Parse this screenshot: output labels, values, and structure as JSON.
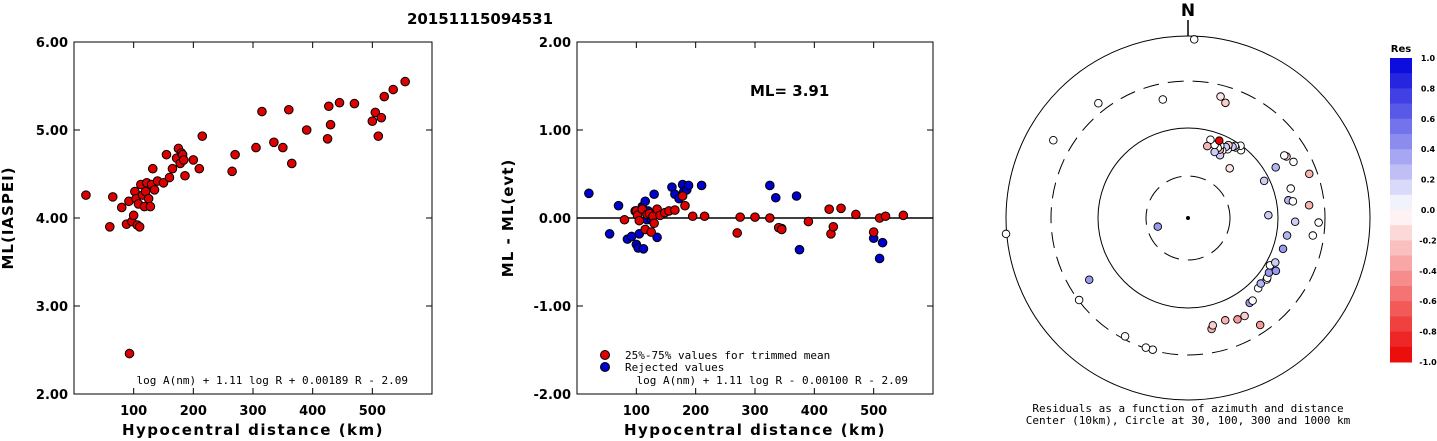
{
  "figure_title": "20151115094531",
  "colors": {
    "red": "#dd0000",
    "blue": "#0000cc",
    "axis": "#000000"
  },
  "chart_data": [
    {
      "type": "scatter",
      "id": "left",
      "xlabel": "Hypocentral distance (km)",
      "ylabel": "ML(IASPEI)",
      "xlim": [
        0,
        600
      ],
      "ylim": [
        2.0,
        6.0
      ],
      "xticks": [
        "100",
        "200",
        "300",
        "400",
        "500"
      ],
      "xtick_values": [
        100,
        200,
        300,
        400,
        500
      ],
      "yticks": [
        "2.00",
        "3.00",
        "4.00",
        "5.00",
        "6.00"
      ],
      "ytick_values": [
        2,
        3,
        4,
        5,
        6
      ],
      "formula": "log A(nm) + 1.11 log R + 0.00189 R - 2.09",
      "points": [
        [
          20,
          4.26
        ],
        [
          60,
          3.9
        ],
        [
          65,
          4.24
        ],
        [
          80,
          4.12
        ],
        [
          88,
          3.93
        ],
        [
          92,
          4.19
        ],
        [
          93,
          2.46
        ],
        [
          97,
          3.96
        ],
        [
          100,
          4.03
        ],
        [
          102,
          4.3
        ],
        [
          104,
          4.22
        ],
        [
          106,
          3.92
        ],
        [
          108,
          4.16
        ],
        [
          110,
          3.9
        ],
        [
          112,
          4.38
        ],
        [
          115,
          4.26
        ],
        [
          118,
          4.13
        ],
        [
          120,
          4.3
        ],
        [
          122,
          4.4
        ],
        [
          125,
          4.22
        ],
        [
          128,
          4.13
        ],
        [
          130,
          4.38
        ],
        [
          132,
          4.56
        ],
        [
          135,
          4.32
        ],
        [
          140,
          4.42
        ],
        [
          150,
          4.4
        ],
        [
          155,
          4.72
        ],
        [
          160,
          4.46
        ],
        [
          165,
          4.56
        ],
        [
          172,
          4.68
        ],
        [
          175,
          4.79
        ],
        [
          178,
          4.62
        ],
        [
          180,
          4.74
        ],
        [
          182,
          4.72
        ],
        [
          184,
          4.66
        ],
        [
          186,
          4.48
        ],
        [
          200,
          4.66
        ],
        [
          210,
          4.56
        ],
        [
          215,
          4.93
        ],
        [
          265,
          4.53
        ],
        [
          270,
          4.72
        ],
        [
          305,
          4.8
        ],
        [
          315,
          5.21
        ],
        [
          335,
          4.86
        ],
        [
          350,
          4.8
        ],
        [
          360,
          5.23
        ],
        [
          365,
          4.62
        ],
        [
          390,
          5.0
        ],
        [
          425,
          4.9
        ],
        [
          427,
          5.27
        ],
        [
          430,
          5.06
        ],
        [
          445,
          5.31
        ],
        [
          470,
          5.3
        ],
        [
          500,
          5.1
        ],
        [
          505,
          5.2
        ],
        [
          510,
          4.93
        ],
        [
          515,
          5.14
        ],
        [
          520,
          5.38
        ],
        [
          535,
          5.46
        ],
        [
          555,
          5.55
        ]
      ]
    },
    {
      "type": "scatter",
      "id": "middle",
      "xlabel": "Hypocentral distance (km)",
      "ylabel": "ML - ML(evt)",
      "xlim": [
        0,
        600
      ],
      "ylim": [
        -2.0,
        2.0
      ],
      "xticks": [
        "100",
        "200",
        "300",
        "400",
        "500"
      ],
      "xtick_values": [
        100,
        200,
        300,
        400,
        500
      ],
      "yticks": [
        "-2.00",
        "-1.00",
        "0.00",
        "1.00",
        "2.00"
      ],
      "ytick_values": [
        -2,
        -1,
        0,
        1,
        2
      ],
      "annotation": "ML= 3.91",
      "legend": [
        {
          "label": "25%-75% values for trimmed mean",
          "color": "red"
        },
        {
          "label": "Rejected values",
          "color": "blue"
        }
      ],
      "formula": "log A(nm) + 1.11 log R - 0.00100 R - 2.09",
      "red_points": [
        [
          80,
          -0.02
        ],
        [
          100,
          0.08
        ],
        [
          102,
          0.03
        ],
        [
          105,
          -0.03
        ],
        [
          110,
          0.1
        ],
        [
          115,
          -0.13
        ],
        [
          118,
          0.04
        ],
        [
          122,
          0.05
        ],
        [
          125,
          -0.16
        ],
        [
          128,
          0.02
        ],
        [
          130,
          -0.06
        ],
        [
          135,
          0.1
        ],
        [
          140,
          0.03
        ],
        [
          148,
          0.06
        ],
        [
          155,
          0.08
        ],
        [
          165,
          0.09
        ],
        [
          178,
          0.25
        ],
        [
          182,
          0.14
        ],
        [
          195,
          0.02
        ],
        [
          215,
          0.02
        ],
        [
          270,
          -0.17
        ],
        [
          275,
          0.01
        ],
        [
          300,
          0.01
        ],
        [
          325,
          0.0
        ],
        [
          340,
          -0.11
        ],
        [
          345,
          -0.13
        ],
        [
          390,
          -0.04
        ],
        [
          425,
          0.1
        ],
        [
          428,
          -0.18
        ],
        [
          432,
          -0.1
        ],
        [
          445,
          0.11
        ],
        [
          470,
          0.04
        ],
        [
          500,
          -0.16
        ],
        [
          510,
          0.0
        ],
        [
          520,
          0.02
        ],
        [
          550,
          0.03
        ]
      ],
      "blue_points": [
        [
          20,
          0.28
        ],
        [
          55,
          -0.18
        ],
        [
          70,
          0.14
        ],
        [
          85,
          -0.24
        ],
        [
          92,
          -0.21
        ],
        [
          98,
          0.08
        ],
        [
          100,
          -0.3
        ],
        [
          103,
          -0.34
        ],
        [
          105,
          -0.18
        ],
        [
          110,
          0.13
        ],
        [
          112,
          -0.35
        ],
        [
          115,
          0.19
        ],
        [
          118,
          -0.02
        ],
        [
          120,
          0.08
        ],
        [
          125,
          -0.01
        ],
        [
          130,
          0.27
        ],
        [
          135,
          -0.22
        ],
        [
          160,
          0.35
        ],
        [
          165,
          0.27
        ],
        [
          172,
          0.22
        ],
        [
          178,
          0.38
        ],
        [
          180,
          0.3
        ],
        [
          185,
          0.32
        ],
        [
          188,
          0.37
        ],
        [
          210,
          0.37
        ],
        [
          325,
          0.37
        ],
        [
          335,
          0.23
        ],
        [
          345,
          -0.12
        ],
        [
          370,
          0.25
        ],
        [
          375,
          -0.36
        ],
        [
          500,
          -0.23
        ],
        [
          510,
          -0.46
        ],
        [
          515,
          -0.28
        ]
      ]
    },
    {
      "type": "scatter",
      "id": "polar",
      "north_label": "N",
      "caption_line1": "Residuals as a function of azimuth and distance",
      "caption_line2": "Center (10km), Circle at 30, 100, 300 and 1000 km",
      "colorbar_title": "Res",
      "colorbar_ticks": [
        "1.0",
        "0.8",
        "0.6",
        "0.4",
        "0.2",
        "0.0",
        "-0.2",
        "-0.4",
        "-0.6",
        "-0.8",
        "-1.0"
      ],
      "colorbar_tick_values": [
        1.0,
        0.8,
        0.6,
        0.4,
        0.2,
        0.0,
        -0.2,
        -0.4,
        -0.6,
        -0.8,
        -1.0
      ],
      "points_az_dist_res": [
        [
          2,
          540,
          0.0
        ],
        [
          -38,
          440,
          0.0
        ],
        [
          -12,
          366,
          0.0
        ],
        [
          15,
          380,
          -0.1
        ],
        [
          18,
          366,
          -0.2
        ],
        [
          -95,
          552,
          0.0
        ],
        [
          -60,
          470,
          0.0
        ],
        [
          -106,
          95,
          0.4
        ],
        [
          -122,
          352,
          0.4
        ],
        [
          -165,
          412,
          0.0
        ],
        [
          -162,
          412,
          0.0
        ],
        [
          -152,
          405,
          0.0
        ],
        [
          -127,
          412,
          0.0
        ],
        [
          -210,
          342,
          -0.2
        ],
        [
          -206,
          341,
          -0.4
        ],
        [
          -200,
          329,
          -0.3
        ],
        [
          -192,
          343,
          -0.3
        ],
        [
          -193,
          333,
          -0.2
        ],
        [
          -214,
          390,
          -0.4
        ],
        [
          -216,
          317,
          0.4
        ],
        [
          -218,
          317,
          0.0
        ],
        [
          -225,
          300,
          0.0
        ],
        [
          -228,
          296,
          0.3
        ],
        [
          -232,
          302,
          0.0
        ],
        [
          -233,
          300,
          0.0
        ],
        [
          -236,
          295,
          0.4
        ],
        [
          -239,
          310,
          0.4
        ],
        [
          -240,
          286,
          0.0
        ],
        [
          -243,
          296,
          0.2
        ],
        [
          -252,
          302,
          0.4
        ],
        [
          -260,
          304,
          0.3
        ],
        [
          -262,
          381,
          0.0
        ],
        [
          -268,
          395,
          0.0
        ],
        [
          -268,
          324,
          0.2
        ],
        [
          -272,
          243,
          0.2
        ],
        [
          -276,
          368,
          -0.3
        ],
        [
          -280,
          308,
          0.3
        ],
        [
          -279,
          321,
          0.0
        ],
        [
          -286,
          323,
          0.0
        ],
        [
          -290,
          390,
          -0.3
        ],
        [
          -296,
          256,
          0.2
        ],
        [
          -298,
          361,
          0.0
        ],
        [
          -302,
          351,
          -0.2
        ],
        [
          -300,
          306,
          0.3
        ],
        [
          -303,
          347,
          0.0
        ],
        [
          -320,
          196,
          -0.1
        ],
        [
          -322,
          260,
          0.0
        ],
        [
          -324,
          270,
          0.0
        ],
        [
          -326,
          257,
          -0.3
        ],
        [
          -327,
          260,
          0.0
        ],
        [
          -328,
          254,
          0.2
        ],
        [
          -330,
          240,
          0.0
        ],
        [
          -331,
          252,
          -0.2
        ],
        [
          -332,
          243,
          0.2
        ],
        [
          -333,
          228,
          0.0
        ],
        [
          -333,
          213,
          0.2
        ],
        [
          -335,
          228,
          -0.3
        ],
        [
          -336,
          240,
          0.0
        ],
        [
          -337,
          230,
          0.0
        ],
        [
          -338,
          215,
          0.2
        ],
        [
          -340,
          235,
          0.0
        ],
        [
          -338,
          252,
          -1.0
        ],
        [
          -344,
          246,
          0.0
        ],
        [
          -345,
          225,
          -0.3
        ]
      ]
    }
  ]
}
